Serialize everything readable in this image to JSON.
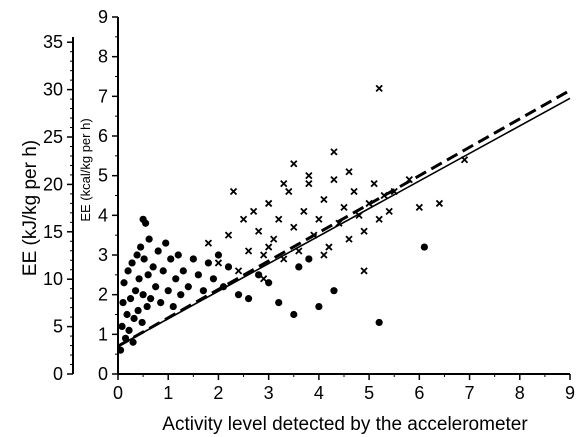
{
  "chart_data": {
    "type": "scatter",
    "title": "",
    "xlabel": "Activity level detected by the accelerometer",
    "ylabel_left": "EE (kJ/kg per h)",
    "ylabel_right": "EE (kcal/kg per h)",
    "xlim": [
      0,
      9
    ],
    "ylim_kcal": [
      0,
      9
    ],
    "ylim_kj": [
      0,
      37.66
    ],
    "x_ticks": [
      "0",
      "1",
      "2",
      "3",
      "4",
      "5",
      "6",
      "7",
      "8",
      "9"
    ],
    "y_ticks_kcal": [
      "0",
      "1",
      "2",
      "3",
      "4",
      "5",
      "6",
      "7",
      "8",
      "9"
    ],
    "y_ticks_kj": [
      "0",
      "5",
      "10",
      "15",
      "20",
      "25",
      "30",
      "35"
    ],
    "grid": false,
    "series": [
      {
        "marker": "circle",
        "points": [
          [
            0.05,
            0.6
          ],
          [
            0.08,
            1.2
          ],
          [
            0.1,
            1.8
          ],
          [
            0.12,
            2.3
          ],
          [
            0.15,
            0.9
          ],
          [
            0.18,
            1.5
          ],
          [
            0.2,
            2.6
          ],
          [
            0.22,
            1.1
          ],
          [
            0.25,
            1.9
          ],
          [
            0.28,
            2.8
          ],
          [
            0.3,
            0.8
          ],
          [
            0.32,
            1.4
          ],
          [
            0.35,
            2.1
          ],
          [
            0.38,
            3.0
          ],
          [
            0.4,
            1.6
          ],
          [
            0.42,
            2.4
          ],
          [
            0.45,
            3.2
          ],
          [
            0.48,
            1.3
          ],
          [
            0.5,
            2.0
          ],
          [
            0.52,
            2.9
          ],
          [
            0.55,
            3.8
          ],
          [
            0.58,
            1.7
          ],
          [
            0.6,
            2.5
          ],
          [
            0.62,
            3.4
          ],
          [
            0.65,
            1.9
          ],
          [
            0.7,
            2.7
          ],
          [
            0.75,
            2.2
          ],
          [
            0.8,
            3.1
          ],
          [
            0.85,
            1.8
          ],
          [
            0.9,
            2.6
          ],
          [
            0.95,
            3.3
          ],
          [
            1.0,
            2.1
          ],
          [
            1.05,
            2.9
          ],
          [
            1.1,
            1.7
          ],
          [
            1.15,
            2.4
          ],
          [
            1.2,
            3.0
          ],
          [
            1.25,
            2.0
          ],
          [
            1.3,
            2.6
          ],
          [
            1.4,
            2.2
          ],
          [
            1.5,
            2.9
          ],
          [
            1.6,
            2.5
          ],
          [
            1.7,
            2.1
          ],
          [
            1.8,
            2.8
          ],
          [
            1.9,
            2.4
          ],
          [
            2.0,
            3.0
          ],
          [
            2.1,
            2.2
          ],
          [
            2.2,
            2.7
          ],
          [
            2.4,
            2.0
          ],
          [
            2.6,
            1.9
          ],
          [
            2.8,
            2.5
          ],
          [
            3.0,
            2.3
          ],
          [
            3.2,
            1.8
          ],
          [
            3.5,
            1.5
          ],
          [
            3.6,
            2.7
          ],
          [
            3.8,
            2.9
          ],
          [
            4.0,
            1.7
          ],
          [
            4.3,
            2.1
          ],
          [
            5.2,
            1.3
          ],
          [
            6.1,
            3.2
          ],
          [
            0.5,
            3.9
          ]
        ]
      },
      {
        "marker": "cross",
        "points": [
          [
            1.8,
            3.3
          ],
          [
            2.0,
            2.8
          ],
          [
            2.2,
            3.5
          ],
          [
            2.4,
            2.6
          ],
          [
            2.5,
            3.9
          ],
          [
            2.6,
            3.1
          ],
          [
            2.7,
            4.1
          ],
          [
            2.8,
            3.6
          ],
          [
            2.9,
            3.0
          ],
          [
            3.0,
            4.3
          ],
          [
            3.1,
            3.4
          ],
          [
            3.2,
            3.9
          ],
          [
            3.3,
            2.9
          ],
          [
            3.4,
            4.6
          ],
          [
            3.5,
            3.7
          ],
          [
            3.6,
            3.1
          ],
          [
            3.7,
            4.1
          ],
          [
            3.8,
            4.8
          ],
          [
            3.9,
            3.5
          ],
          [
            4.0,
            3.9
          ],
          [
            4.1,
            4.4
          ],
          [
            4.2,
            3.2
          ],
          [
            4.3,
            4.9
          ],
          [
            4.4,
            3.8
          ],
          [
            4.5,
            4.2
          ],
          [
            4.6,
            3.4
          ],
          [
            4.7,
            4.6
          ],
          [
            4.8,
            4.0
          ],
          [
            4.9,
            3.6
          ],
          [
            5.0,
            4.3
          ],
          [
            5.1,
            4.8
          ],
          [
            5.2,
            3.9
          ],
          [
            5.3,
            4.5
          ],
          [
            5.4,
            4.1
          ],
          [
            5.5,
            4.6
          ],
          [
            5.8,
            4.9
          ],
          [
            6.0,
            4.2
          ],
          [
            6.4,
            4.3
          ],
          [
            6.9,
            5.4
          ],
          [
            5.2,
            7.2
          ],
          [
            4.3,
            5.6
          ],
          [
            3.5,
            5.3
          ],
          [
            2.3,
            4.6
          ],
          [
            3.8,
            5.0
          ],
          [
            4.6,
            5.1
          ],
          [
            3.0,
            3.2
          ],
          [
            2.9,
            2.4
          ],
          [
            4.9,
            2.6
          ],
          [
            3.3,
            4.8
          ],
          [
            4.1,
            3.0
          ]
        ]
      }
    ],
    "lines": [
      {
        "style": "solid",
        "from": [
          0,
          0.7
        ],
        "to": [
          9,
          6.95
        ]
      },
      {
        "style": "dashed",
        "from": [
          0,
          0.7
        ],
        "to": [
          9,
          7.15
        ]
      }
    ]
  }
}
